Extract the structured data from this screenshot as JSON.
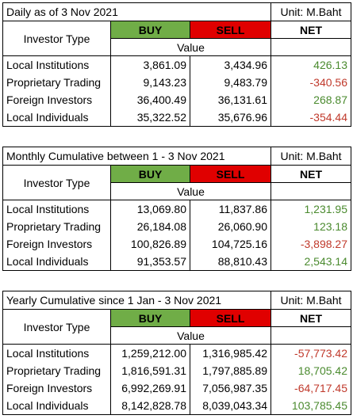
{
  "tables": [
    {
      "title": "Daily as of 3 Nov 2021",
      "unit": "Unit: M.Baht",
      "investor_type_label": "Investor Type",
      "buy_label": "BUY",
      "sell_label": "SELL",
      "net_label": "NET",
      "value_label": "Value",
      "rows": [
        {
          "label": "Local Institutions",
          "buy": "3,861.09",
          "sell": "3,434.96",
          "net": "426.13",
          "sign": "pos"
        },
        {
          "label": "Proprietary Trading",
          "buy": "9,143.23",
          "sell": "9,483.79",
          "net": "-340.56",
          "sign": "neg"
        },
        {
          "label": "Foreign Investors",
          "buy": "36,400.49",
          "sell": "36,131.61",
          "net": "268.87",
          "sign": "pos"
        },
        {
          "label": "Local Individuals",
          "buy": "35,322.52",
          "sell": "35,676.96",
          "net": "-354.44",
          "sign": "neg"
        }
      ]
    },
    {
      "title": "Monthly Cumulative between 1 - 3 Nov 2021",
      "unit": "Unit: M.Baht",
      "investor_type_label": "Investor Type",
      "buy_label": "BUY",
      "sell_label": "SELL",
      "net_label": "NET",
      "value_label": "Value",
      "rows": [
        {
          "label": "Local Institutions",
          "buy": "13,069.80",
          "sell": "11,837.86",
          "net": "1,231.95",
          "sign": "pos"
        },
        {
          "label": "Proprietary Trading",
          "buy": "26,184.08",
          "sell": "26,060.90",
          "net": "123.18",
          "sign": "pos"
        },
        {
          "label": "Foreign Investors",
          "buy": "100,826.89",
          "sell": "104,725.16",
          "net": "-3,898.27",
          "sign": "neg"
        },
        {
          "label": "Local Individuals",
          "buy": "91,353.57",
          "sell": "88,810.43",
          "net": "2,543.14",
          "sign": "pos"
        }
      ]
    },
    {
      "title": "Yearly Cumulative since 1 Jan - 3 Nov 2021",
      "unit": "Unit: M.Baht",
      "investor_type_label": "Investor Type",
      "buy_label": "BUY",
      "sell_label": "SELL",
      "net_label": "NET",
      "value_label": "Value",
      "rows": [
        {
          "label": "Local Institutions",
          "buy": "1,259,212.00",
          "sell": "1,316,985.42",
          "net": "-57,773.42",
          "sign": "neg"
        },
        {
          "label": "Proprietary Trading",
          "buy": "1,816,591.31",
          "sell": "1,797,885.89",
          "net": "18,705.42",
          "sign": "pos"
        },
        {
          "label": "Foreign Investors",
          "buy": "6,992,269.91",
          "sell": "7,056,987.35",
          "net": "-64,717.45",
          "sign": "neg"
        },
        {
          "label": "Local Individuals",
          "buy": "8,142,828.78",
          "sell": "8,039,043.34",
          "net": "103,785.45",
          "sign": "pos"
        }
      ]
    }
  ],
  "colors": {
    "buy_bg": "#70ad47",
    "sell_bg": "#e00000",
    "positive": "#4a8a2e",
    "negative": "#c0392b"
  }
}
